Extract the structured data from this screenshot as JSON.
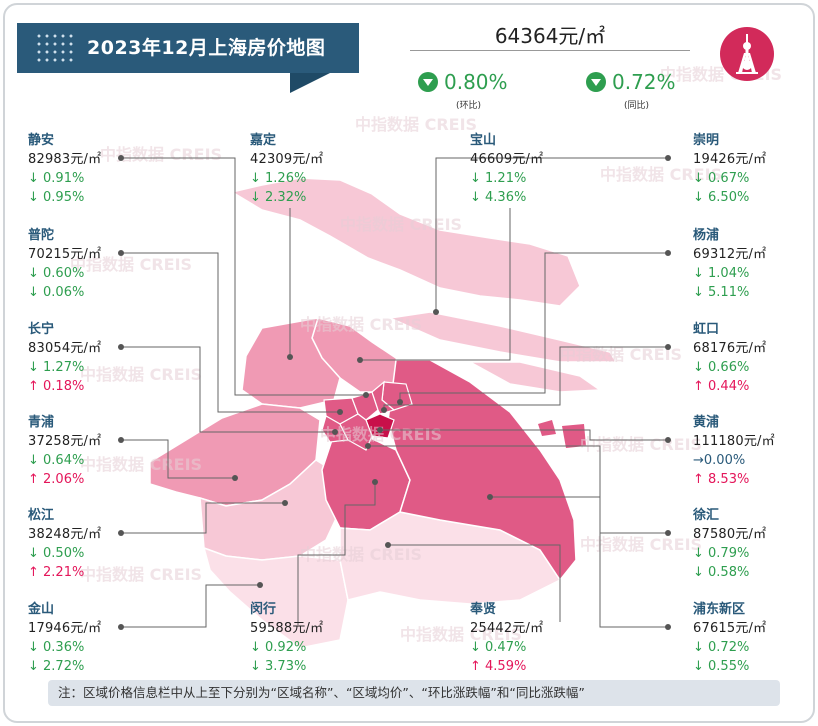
{
  "title": "2023年12月上海房价地图",
  "overall": {
    "price": "64364元/㎡",
    "mom": "0.80%",
    "mom_label": "(环比)",
    "yoy": "0.72%",
    "yoy_label": "(同比)"
  },
  "watermark": "中指数据 CREIS",
  "note": "注：区域价格信息栏中从上至下分别为“区域名称”、“区域均价”、“环比涨跌幅”和“同比涨跌幅”",
  "colors": {
    "banner": "#2a5a7a",
    "down": "#2e9e4f",
    "up": "#e4165a",
    "map_dark": "#e05a86",
    "map_mid": "#f09ab4",
    "map_light": "#f7c8d6",
    "map_pale": "#fbe0e8"
  },
  "chart_data": {
    "type": "table",
    "title": "2023年12月上海房价地图",
    "columns": [
      "区域名称",
      "区域均价",
      "环比涨跌幅",
      "同比涨跌幅"
    ],
    "unit": "元/㎡",
    "districts": [
      {
        "name": "静安",
        "price": "82983元/㎡",
        "mom": "↓ 0.91%",
        "mom_dir": "down",
        "yoy": "↓ 0.95%",
        "yoy_dir": "down"
      },
      {
        "name": "普陀",
        "price": "70215元/㎡",
        "mom": "↓ 0.60%",
        "mom_dir": "down",
        "yoy": "↓ 0.06%",
        "yoy_dir": "down"
      },
      {
        "name": "长宁",
        "price": "83054元/㎡",
        "mom": "↓ 1.27%",
        "mom_dir": "down",
        "yoy": "↑ 0.18%",
        "yoy_dir": "up"
      },
      {
        "name": "青浦",
        "price": "37258元/㎡",
        "mom": "↓ 0.64%",
        "mom_dir": "down",
        "yoy": "↑ 2.06%",
        "yoy_dir": "up"
      },
      {
        "name": "松江",
        "price": "38248元/㎡",
        "mom": "↓ 0.50%",
        "mom_dir": "down",
        "yoy": "↑ 2.21%",
        "yoy_dir": "up"
      },
      {
        "name": "金山",
        "price": "17946元/㎡",
        "mom": "↓ 0.36%",
        "mom_dir": "down",
        "yoy": "↓ 2.72%",
        "yoy_dir": "down"
      },
      {
        "name": "嘉定",
        "price": "42309元/㎡",
        "mom": "↓ 1.26%",
        "mom_dir": "down",
        "yoy": "↓ 2.32%",
        "yoy_dir": "down"
      },
      {
        "name": "闵行",
        "price": "59588元/㎡",
        "mom": "↓ 0.92%",
        "mom_dir": "down",
        "yoy": "↓ 3.73%",
        "yoy_dir": "down"
      },
      {
        "name": "宝山",
        "price": "46609元/㎡",
        "mom": "↓ 1.21%",
        "mom_dir": "down",
        "yoy": "↓ 4.36%",
        "yoy_dir": "down"
      },
      {
        "name": "奉贤",
        "price": "25442元/㎡",
        "mom": "↓ 0.47%",
        "mom_dir": "down",
        "yoy": "↑ 4.59%",
        "yoy_dir": "up"
      },
      {
        "name": "崇明",
        "price": "19426元/㎡",
        "mom": "↓ 0.67%",
        "mom_dir": "down",
        "yoy": "↓ 6.50%",
        "yoy_dir": "down"
      },
      {
        "name": "杨浦",
        "price": "69312元/㎡",
        "mom": "↓ 1.04%",
        "mom_dir": "down",
        "yoy": "↓ 5.11%",
        "yoy_dir": "down"
      },
      {
        "name": "虹口",
        "price": "68176元/㎡",
        "mom": "↓ 0.66%",
        "mom_dir": "down",
        "yoy": "↑ 0.44%",
        "yoy_dir": "up"
      },
      {
        "name": "黄浦",
        "price": "111180元/㎡",
        "mom": "→0.00%",
        "mom_dir": "flat",
        "yoy": "↑ 8.53%",
        "yoy_dir": "up"
      },
      {
        "name": "徐汇",
        "price": "87580元/㎡",
        "mom": "↓ 0.79%",
        "mom_dir": "down",
        "yoy": "↓ 0.58%",
        "yoy_dir": "down"
      },
      {
        "name": "浦东新区",
        "price": "67615元/㎡",
        "mom": "↓ 0.72%",
        "mom_dir": "down",
        "yoy": "↓ 0.55%",
        "yoy_dir": "down"
      }
    ]
  }
}
